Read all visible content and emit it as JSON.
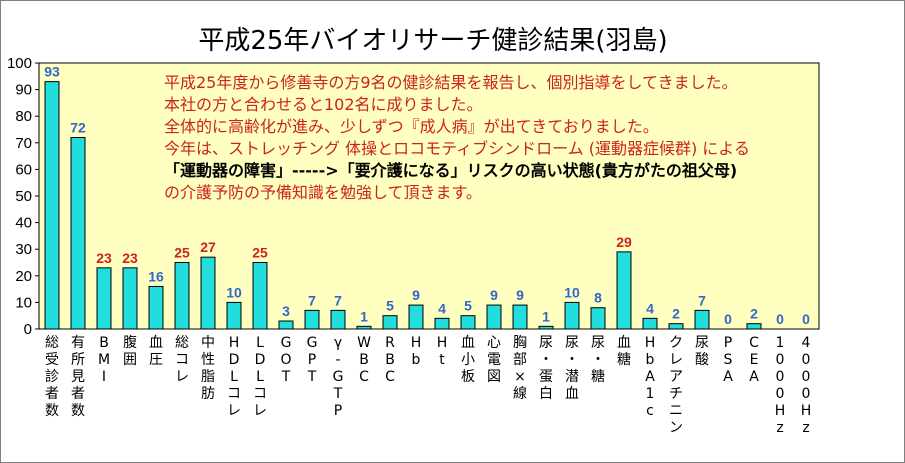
{
  "colors": {
    "bar": "#22dddd",
    "bar_stroke": "#000000",
    "plot_bg": "#ffffc0",
    "blue_label": "#3366cc",
    "red_label": "#cc2222",
    "note_red": "#cc2222",
    "note_black": "#000000"
  },
  "chart_data": {
    "type": "bar",
    "title": "平成25年バイオリサーチ健診結果(羽島)",
    "xlabel": "",
    "ylabel": "",
    "ylim": [
      0,
      100
    ],
    "yticks": [
      0,
      10,
      20,
      30,
      40,
      50,
      60,
      70,
      80,
      90,
      100
    ],
    "grid": false,
    "legend": "none",
    "categories": [
      "総受診者数",
      "有所見者数",
      "BMI",
      "腹囲",
      "血圧",
      "総コレ",
      "中性脂肪",
      "HDLコレ",
      "LDLコレ",
      "GOT",
      "GPT",
      "γ-GTP",
      "WBC",
      "RBC",
      "Hb",
      "Ht",
      "血小板",
      "心電図",
      "胸部×線",
      "尿・蛋白",
      "尿・潜血",
      "尿・糖",
      "血糖",
      "HbA1c",
      "クレアチニン",
      "尿酸",
      "PSA",
      "CEA",
      "1000Hz",
      "4000Hz"
    ],
    "values": [
      93,
      72,
      23,
      23,
      16,
      25,
      27,
      10,
      25,
      3,
      7,
      7,
      1,
      5,
      9,
      4,
      5,
      9,
      9,
      1,
      10,
      8,
      29,
      4,
      2,
      7,
      0,
      2,
      0,
      0
    ],
    "label_colors": [
      "blue",
      "blue",
      "red",
      "red",
      "blue",
      "red",
      "red",
      "blue",
      "red",
      "blue",
      "blue",
      "blue",
      "blue",
      "blue",
      "blue",
      "blue",
      "blue",
      "blue",
      "blue",
      "blue",
      "blue",
      "blue",
      "red",
      "blue",
      "blue",
      "blue",
      "blue",
      "blue",
      "blue",
      "blue"
    ]
  },
  "notes": [
    {
      "text": "平成25年度から修善寺の方9名の健診結果を報告し、個別指導をしてきました。",
      "color": "red"
    },
    {
      "text": "本社の方と合わせると102名に成りました。",
      "color": "red"
    },
    {
      "text": "全体的に高齢化が進み、少しずつ『成人病』が出てきておりました。",
      "color": "red"
    },
    {
      "text": "今年は、ストレッチング 体操とロコモティブシンドローム (運動器症候群) による",
      "color": "red"
    },
    {
      "text": "「運動器の障害」----->「要介護になる」リスクの高い状態(貴方がたの祖父母)",
      "color": "black"
    },
    {
      "text": "の介護予防の予備知識を勉強して頂きます。",
      "color": "red"
    }
  ]
}
